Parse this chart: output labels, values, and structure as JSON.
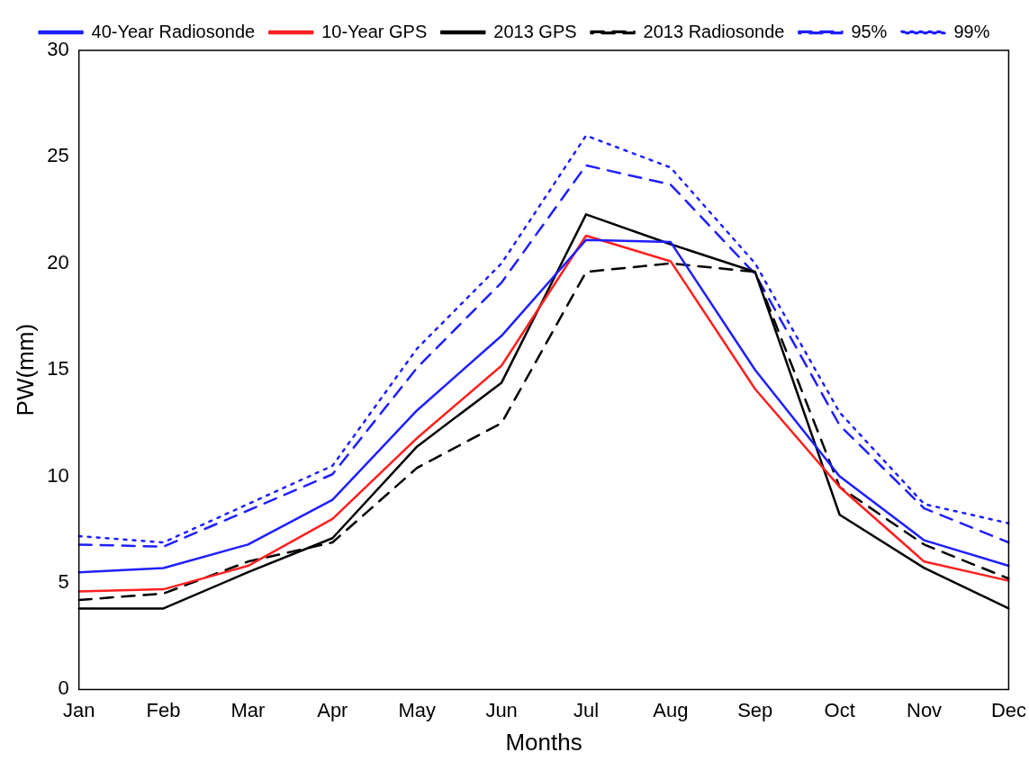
{
  "chart_data": {
    "type": "line",
    "xlabel": "Months",
    "ylabel": "PW(mm)",
    "categories": [
      "Jan",
      "Feb",
      "Mar",
      "Apr",
      "May",
      "Jun",
      "Jul",
      "Aug",
      "Sep",
      "Oct",
      "Nov",
      "Dec"
    ],
    "series": [
      {
        "name": "40-Year Radiosonde",
        "color": "#1f1fff",
        "line_style": "solid",
        "values": [
          5.5,
          5.7,
          6.8,
          8.9,
          13.1,
          16.6,
          21.1,
          21.0,
          15.0,
          10.0,
          7.0,
          5.8
        ]
      },
      {
        "name": "10-Year GPS",
        "color": "#ff2020",
        "line_style": "solid",
        "values": [
          4.6,
          4.7,
          5.8,
          8.0,
          11.8,
          15.2,
          21.3,
          20.1,
          14.1,
          9.5,
          6.0,
          5.1
        ]
      },
      {
        "name": "2013 GPS",
        "color": "#000000",
        "line_style": "solid",
        "values": [
          3.8,
          3.8,
          5.5,
          7.1,
          11.4,
          14.4,
          22.3,
          20.9,
          19.6,
          8.2,
          5.7,
          3.8
        ]
      },
      {
        "name": "2013 Radiosonde",
        "color": "#000000",
        "line_style": "dashed",
        "values": [
          4.2,
          4.5,
          6.0,
          6.9,
          10.4,
          12.5,
          19.6,
          20.0,
          19.6,
          9.5,
          6.8,
          5.2
        ]
      },
      {
        "name": "95%",
        "color": "#1f1fff",
        "line_style": "dashed",
        "values": [
          6.8,
          6.7,
          8.4,
          10.1,
          15.1,
          19.1,
          24.6,
          23.7,
          19.5,
          12.4,
          8.5,
          6.9
        ]
      },
      {
        "name": "99%",
        "color": "#1f1fff",
        "line_style": "dotted",
        "values": [
          7.2,
          6.9,
          8.7,
          10.5,
          16.0,
          20.0,
          26.0,
          24.5,
          20.0,
          13.0,
          8.7,
          7.8
        ]
      }
    ],
    "ylim": [
      0,
      30
    ],
    "yticks": [
      0,
      5,
      10,
      15,
      20,
      25,
      30
    ],
    "grid": false,
    "legend": "top",
    "marker": "none"
  }
}
